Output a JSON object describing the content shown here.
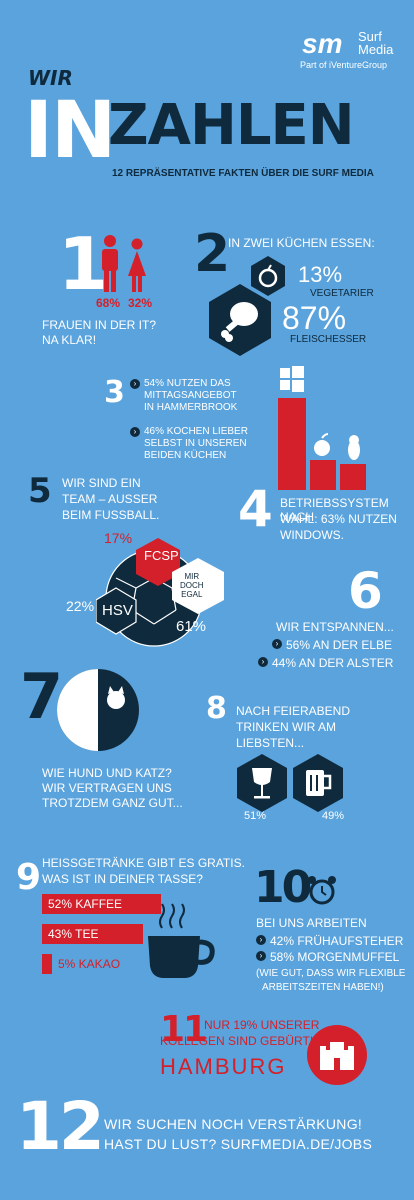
{
  "brand": {
    "logo_letters": "sm",
    "name_line1": "Surf",
    "name_line2": "Media",
    "tagline": "Part of iVentureGroup"
  },
  "header": {
    "wir": "WIR",
    "in": "IN",
    "zahlen": "ZAHLEN",
    "subtitle": "12 REPRÄSENTATIVE FAKTEN ÜBER DIE SURF MEDIA"
  },
  "fact1": {
    "number": "1",
    "male_pct": "68%",
    "female_pct": "32%",
    "line1": "FRAUEN IN DER IT?",
    "line2": "NA KLAR!"
  },
  "fact2": {
    "number": "2",
    "title": "IN ZWEI KÜCHEN ESSEN:",
    "veg_pct": "13%",
    "veg_label": "VEGETARIER",
    "meat_pct": "87%",
    "meat_label": "FLEISCHESSER"
  },
  "fact3": {
    "number": "3",
    "b1_line1": "54% NUTZEN DAS",
    "b1_line2": "MITTAGSANGEBOT",
    "b1_line3": "IN HAMMERBROOK",
    "b2_line1": "46% KOCHEN LIEBER",
    "b2_line2": "SELBST IN UNSEREN",
    "b2_line3": "BEIDEN KÜCHEN"
  },
  "fact4": {
    "number": "4",
    "line1": "BETRIEBSSYSTEM NACH",
    "line2": "WAHL: 63% NUTZEN",
    "line3": "WINDOWS.",
    "windows_share": 63
  },
  "fact5": {
    "number": "5",
    "line1": "WIR SIND EIN",
    "line2": "TEAM – AUSSER",
    "line3": "BEIM FUSSBALL.",
    "fcsp_pct": "17%",
    "fcsp_label": "FCSP",
    "hsv_pct": "22%",
    "hsv_label": "HSV",
    "egal_l1": "MIR",
    "egal_l2": "DOCH",
    "egal_l3": "EGAL",
    "egal_pct": "61%"
  },
  "fact6": {
    "number": "6",
    "title": "WIR ENTSPANNEN...",
    "b1": "56% AN DER ELBE",
    "b2": "44% AN DER ALSTER"
  },
  "fact7": {
    "number": "7",
    "dog_pct": "47%",
    "cat_pct": "53%",
    "line1": "WIE HUND UND KATZ?",
    "line2": "WIR VERTRAGEN UNS",
    "line3": "TROTZDEM GANZ GUT..."
  },
  "fact8": {
    "number": "8",
    "line1": "NACH FEIERABEND",
    "line2": "TRINKEN WIR AM",
    "line3": "LIEBSTEN...",
    "wine_pct": "51%",
    "beer_pct": "49%"
  },
  "fact9": {
    "number": "9",
    "line1": "HEISSGETRÄNKE GIBT ES GRATIS.",
    "line2": "WAS IST IN DEINER TASSE?",
    "coffee": "52% KAFFEE",
    "tea": "43% TEE",
    "cocoa": "5% KAKAO",
    "coffee_share": 52,
    "tea_share": 43,
    "cocoa_share": 5
  },
  "fact10": {
    "number": "10",
    "line1": "BEI UNS ARBEITEN",
    "b1": "42% FRÜHAUFSTEHER",
    "b2": "58% MORGENMUFFEL",
    "note1": "(WIE GUT, DASS WIR FLEXIBLE",
    "note2": "ARBEITSZEITEN HABEN!)"
  },
  "fact11": {
    "number": "11",
    "line1": "NUR 19% UNSERER",
    "line2": "KOLLEGEN SIND GEBÜRTIG AUS",
    "city": "HAMBURG"
  },
  "fact12": {
    "number": "12",
    "line1": "WIR SUCHEN NOCH VERSTÄRKUNG!",
    "line2": "HAST DU LUST? SURFMEDIA.DE/JOBS"
  },
  "colors": {
    "background": "#5aa3dc",
    "dark": "#0f2a3d",
    "red": "#d4202a",
    "white": "#ffffff"
  },
  "icons": [
    "male-icon",
    "female-icon",
    "apple-food-icon",
    "chicken-leg-icon",
    "windows-icon",
    "apple-logo-icon",
    "linux-icon",
    "soccer-ball-icon",
    "dog-icon",
    "cat-icon",
    "wine-glass-icon",
    "beer-mug-icon",
    "coffee-cup-icon",
    "alarm-clock-icon",
    "hamburg-crest-icon",
    "chevron-right-icon"
  ]
}
